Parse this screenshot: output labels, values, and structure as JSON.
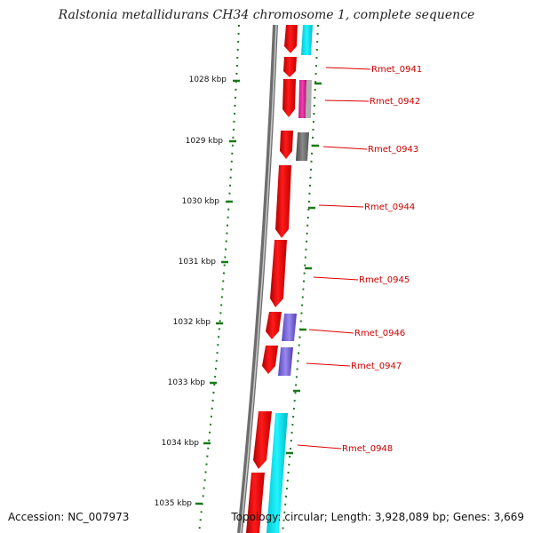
{
  "title": "Ralstonia metallidurans CH34 chromosome 1, complete sequence",
  "accession": "Accession: NC_007973",
  "topology": "Topology: circular; Length: 3,928,089 bp; Genes: 3,669",
  "scale_labels": [
    "1028 kbp",
    "1029 kbp",
    "1030 kbp",
    "1031 kbp",
    "1032 kbp",
    "1033 kbp",
    "1034 kbp",
    "1035 kbp"
  ],
  "genes": [
    "Rmet_0941",
    "Rmet_0942",
    "Rmet_0943",
    "Rmet_0944",
    "Rmet_0945",
    "Rmet_0946",
    "Rmet_0947",
    "Rmet_0948"
  ],
  "colors": {
    "cds": "#ee0000",
    "backbone": "#777777",
    "ticks": "#1a7a1a",
    "gene_label": "#cc0000",
    "cyan": "#00e5ee",
    "magenta": "#dd2a9a",
    "grey": "#666666",
    "purple": "#7b68dd"
  }
}
